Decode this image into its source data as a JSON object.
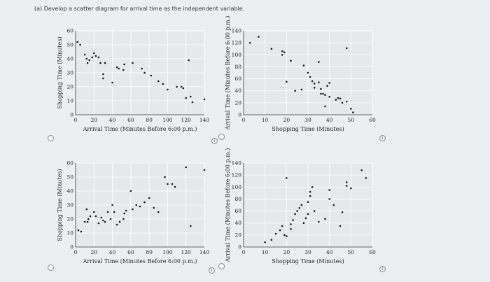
{
  "question": {
    "text": "(a) Develop a scatter diagram for arrival time as the independent variable."
  },
  "icons": {
    "radio": "radio-button-icon",
    "info": "info-circle-icon",
    "info_glyph": "i"
  },
  "colors": {
    "dot": "#1a1a1a",
    "plot_bg": "#e6e9ec",
    "grid": "#ffffff"
  },
  "chart_data": [
    {
      "type": "scatter",
      "title": "",
      "xlabel": "Arrival Time (Minutes Before 6:00 p.m.)",
      "ylabel": "Shopping Time (Minutes)",
      "xlim": [
        0,
        140
      ],
      "ylim": [
        0,
        60
      ],
      "xticks": [
        0,
        20,
        40,
        60,
        80,
        100,
        120,
        140
      ],
      "yticks": [
        0,
        10,
        20,
        30,
        40,
        50,
        60
      ],
      "tick_labels_x": [
        "0",
        "20",
        "40",
        "60",
        "80",
        "100",
        "120",
        "140"
      ],
      "tick_labels_y": [
        "0",
        "10",
        "20",
        "30",
        "40",
        "50",
        "60"
      ],
      "points": [
        [
          2,
          52
        ],
        [
          5,
          50
        ],
        [
          10,
          43
        ],
        [
          12,
          40
        ],
        [
          13,
          37
        ],
        [
          15,
          39
        ],
        [
          18,
          41
        ],
        [
          20,
          44
        ],
        [
          22,
          42
        ],
        [
          25,
          41
        ],
        [
          27,
          37
        ],
        [
          30,
          29
        ],
        [
          30,
          26
        ],
        [
          32,
          37
        ],
        [
          40,
          23
        ],
        [
          45,
          34
        ],
        [
          47,
          33
        ],
        [
          52,
          32
        ],
        [
          53,
          36
        ],
        [
          62,
          37
        ],
        [
          72,
          33
        ],
        [
          75,
          30
        ],
        [
          82,
          28
        ],
        [
          90,
          24
        ],
        [
          95,
          22
        ],
        [
          100,
          18
        ],
        [
          110,
          20
        ],
        [
          115,
          20
        ],
        [
          117,
          19
        ],
        [
          120,
          12
        ],
        [
          125,
          13
        ],
        [
          127,
          9
        ],
        [
          140,
          11
        ],
        [
          123,
          39
        ]
      ]
    },
    {
      "type": "scatter",
      "title": "",
      "xlabel": "Shopping Time (Minutes)",
      "ylabel": "Arrival Time (Minutes Before 6:00 p.m.)",
      "xlim": [
        0,
        60
      ],
      "ylim": [
        0,
        140
      ],
      "xticks": [
        0,
        10,
        20,
        30,
        40,
        50,
        60
      ],
      "yticks": [
        0,
        20,
        40,
        60,
        80,
        100,
        120,
        140
      ],
      "tick_labels_x": [
        "0",
        "10",
        "20",
        "30",
        "40",
        "50",
        "60"
      ],
      "tick_labels_y": [
        "0",
        "20",
        "40",
        "60",
        "80",
        "100",
        "120",
        "140"
      ],
      "points": [
        [
          3,
          120
        ],
        [
          7,
          130
        ],
        [
          13,
          110
        ],
        [
          18,
          100
        ],
        [
          18,
          106
        ],
        [
          19,
          104
        ],
        [
          20,
          55
        ],
        [
          22,
          90
        ],
        [
          24,
          40
        ],
        [
          27,
          42
        ],
        [
          28,
          82
        ],
        [
          30,
          70
        ],
        [
          31,
          63
        ],
        [
          32,
          56
        ],
        [
          33,
          45
        ],
        [
          33,
          52
        ],
        [
          35,
          54
        ],
        [
          36,
          43
        ],
        [
          37,
          35
        ],
        [
          38,
          33
        ],
        [
          38,
          14
        ],
        [
          39,
          48
        ],
        [
          40,
          30
        ],
        [
          43,
          25
        ],
        [
          44,
          28
        ],
        [
          45,
          27
        ],
        [
          46,
          20
        ],
        [
          48,
          22
        ],
        [
          50,
          10
        ],
        [
          51,
          4
        ],
        [
          48,
          111
        ],
        [
          35,
          88
        ],
        [
          36,
          35
        ],
        [
          40,
          53
        ]
      ]
    },
    {
      "type": "scatter",
      "title": "",
      "xlabel": "Arrival Time (Minutes Before 6:00 p.m.)",
      "ylabel": "Shopping Time (Minutes)",
      "xlim": [
        0,
        140
      ],
      "ylim": [
        0,
        60
      ],
      "xticks": [
        0,
        20,
        40,
        60,
        80,
        100,
        120,
        140
      ],
      "yticks": [
        0,
        10,
        20,
        30,
        40,
        50,
        60
      ],
      "tick_labels_x": [
        "0",
        "20",
        "40",
        "60",
        "80",
        "100",
        "120",
        "140"
      ],
      "tick_labels_y": [
        "0",
        "10",
        "20",
        "30",
        "40",
        "50",
        "60"
      ],
      "points": [
        [
          3,
          12
        ],
        [
          6,
          11
        ],
        [
          10,
          18
        ],
        [
          12,
          27
        ],
        [
          13,
          18
        ],
        [
          14,
          20
        ],
        [
          16,
          22
        ],
        [
          20,
          25
        ],
        [
          22,
          22
        ],
        [
          25,
          17
        ],
        [
          28,
          21
        ],
        [
          30,
          19
        ],
        [
          32,
          18
        ],
        [
          35,
          25
        ],
        [
          38,
          20
        ],
        [
          40,
          30
        ],
        [
          42,
          25
        ],
        [
          45,
          16
        ],
        [
          48,
          18
        ],
        [
          52,
          20
        ],
        [
          53,
          24
        ],
        [
          55,
          26
        ],
        [
          60,
          40
        ],
        [
          62,
          27
        ],
        [
          66,
          30
        ],
        [
          70,
          29
        ],
        [
          75,
          32
        ],
        [
          80,
          35
        ],
        [
          85,
          28
        ],
        [
          90,
          25
        ],
        [
          97,
          50
        ],
        [
          100,
          45
        ],
        [
          105,
          45
        ],
        [
          108,
          43
        ],
        [
          120,
          57
        ],
        [
          125,
          15
        ],
        [
          140,
          55
        ]
      ]
    },
    {
      "type": "scatter",
      "title": "",
      "xlabel": "Shopping Time (Minutes)",
      "ylabel": "Arrival Time (Minutes Before 6:00 p.m.)",
      "xlim": [
        0,
        60
      ],
      "ylim": [
        0,
        140
      ],
      "xticks": [
        0,
        10,
        20,
        30,
        40,
        50,
        60
      ],
      "yticks": [
        0,
        20,
        40,
        60,
        80,
        100,
        120,
        140
      ],
      "tick_labels_x": [
        "0",
        "10",
        "20",
        "30",
        "40",
        "50",
        "60"
      ],
      "tick_labels_y": [
        "0",
        "20",
        "40",
        "60",
        "80",
        "100",
        "120",
        "140"
      ],
      "points": [
        [
          10,
          8
        ],
        [
          13,
          12
        ],
        [
          15,
          22
        ],
        [
          17,
          28
        ],
        [
          18,
          35
        ],
        [
          19,
          20
        ],
        [
          20,
          18
        ],
        [
          22,
          30
        ],
        [
          22,
          38
        ],
        [
          23,
          45
        ],
        [
          24,
          55
        ],
        [
          25,
          60
        ],
        [
          26,
          65
        ],
        [
          27,
          70
        ],
        [
          28,
          40
        ],
        [
          29,
          48
        ],
        [
          30,
          55
        ],
        [
          30,
          75
        ],
        [
          31,
          85
        ],
        [
          31,
          92
        ],
        [
          32,
          100
        ],
        [
          33,
          60
        ],
        [
          35,
          42
        ],
        [
          38,
          47
        ],
        [
          40,
          80
        ],
        [
          42,
          70
        ],
        [
          45,
          35
        ],
        [
          46,
          58
        ],
        [
          48,
          102
        ],
        [
          48,
          108
        ],
        [
          50,
          98
        ],
        [
          55,
          128
        ],
        [
          57,
          115
        ],
        [
          20,
          115
        ],
        [
          40,
          95
        ]
      ]
    }
  ]
}
